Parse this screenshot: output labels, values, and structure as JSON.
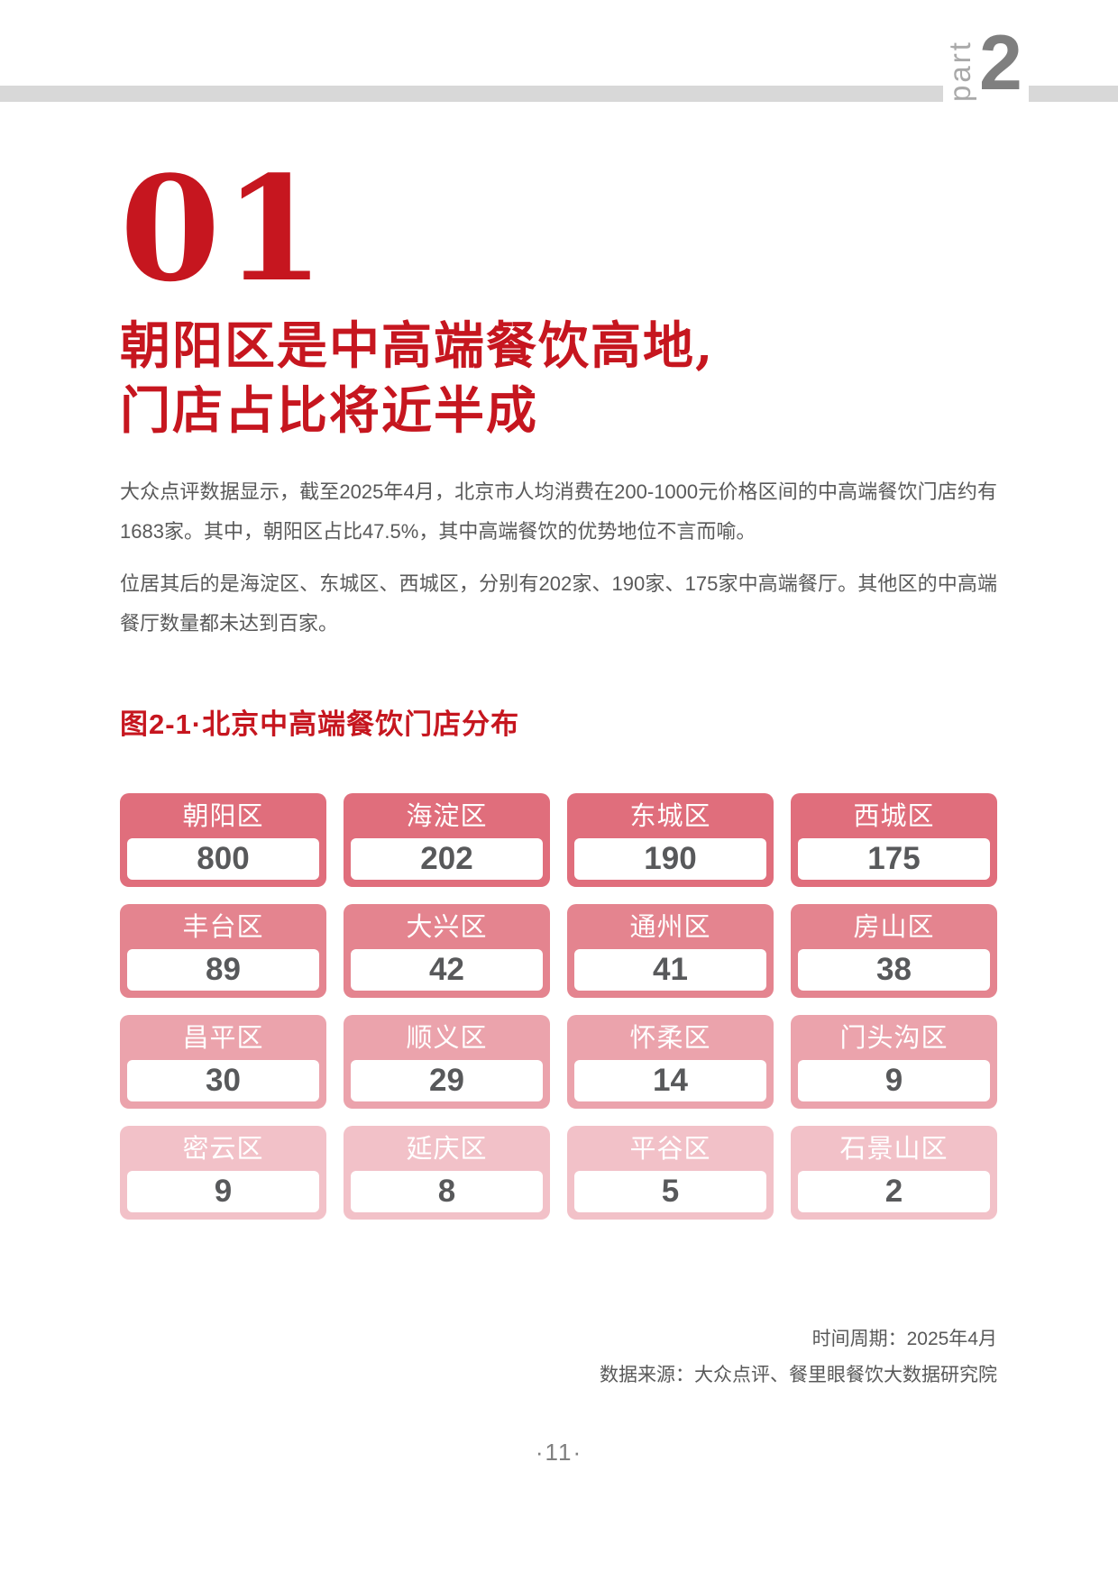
{
  "header": {
    "part_label": "part",
    "part_number": "2"
  },
  "section": {
    "number": "01",
    "title_line1": "朝阳区是中高端餐饮高地,",
    "title_line2": "门店占比将近半成"
  },
  "paragraphs": [
    "大众点评数据显示，截至2025年4月，北京市人均消费在200-1000元价格区间的中高端餐饮门店约有1683家。其中，朝阳区占比47.5%，其中高端餐饮的优势地位不言而喻。",
    "位居其后的是海淀区、东城区、西城区，分别有202家、190家、175家中高端餐厅。其他区的中高端餐厅数量都未达到百家。"
  ],
  "chart_data": {
    "type": "table",
    "title": "图2-1·北京中高端餐饮门店分布",
    "categories": [
      "朝阳区",
      "海淀区",
      "东城区",
      "西城区",
      "丰台区",
      "大兴区",
      "通州区",
      "房山区",
      "昌平区",
      "顺义区",
      "怀柔区",
      "门头沟区",
      "密云区",
      "延庆区",
      "平谷区",
      "石景山区"
    ],
    "values": [
      800,
      202,
      190,
      175,
      89,
      42,
      41,
      38,
      30,
      29,
      14,
      9,
      9,
      8,
      5,
      2
    ],
    "layout": {
      "columns": 4,
      "rows": 4
    },
    "row_colors": [
      "#e06e7c",
      "#e4848f",
      "#eba3ac",
      "#f2c1c8"
    ],
    "header_text_color": "#ffffff",
    "value_text_color": "#58595b"
  },
  "colors": {
    "accent_red": "#c6161f",
    "body_text": "#595959",
    "header_bar": "#d8d8d8"
  },
  "footer": {
    "period": "时间周期：2025年4月",
    "source": "数据来源：大众点评、餐里眼餐饮大数据研究院",
    "page_number": "·11·"
  }
}
